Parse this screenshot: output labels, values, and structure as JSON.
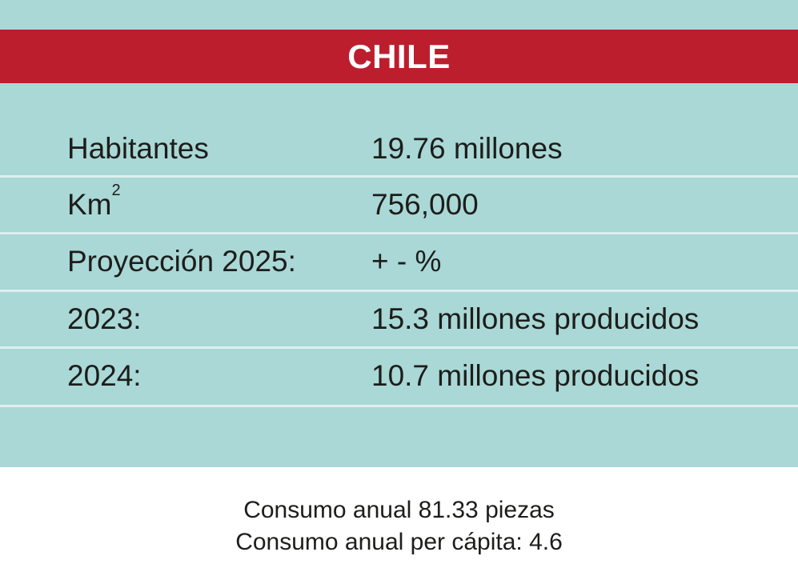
{
  "header": {
    "title": "CHILE"
  },
  "rows": [
    {
      "label": "Habitantes",
      "value": "19.76 millones"
    },
    {
      "label": "Km",
      "label_sup": "2",
      "value": "756,000"
    },
    {
      "label": "Proyección 2025:",
      "value": "+ - %"
    },
    {
      "label": "2023:",
      "value": "15.3 millones producidos"
    },
    {
      "label": "2024:",
      "value": "10.7 millones producidos"
    }
  ],
  "footer": {
    "line1": "Consumo anual 81.33 piezas",
    "line2": "Consumo anual per cápita: 4.6"
  },
  "colors": {
    "card_background": "#a9d8d6",
    "title_bar": "#bd1e2e",
    "title_text": "#ffffff",
    "divider": "#dfeeee",
    "body_text": "#1d1d1b"
  }
}
